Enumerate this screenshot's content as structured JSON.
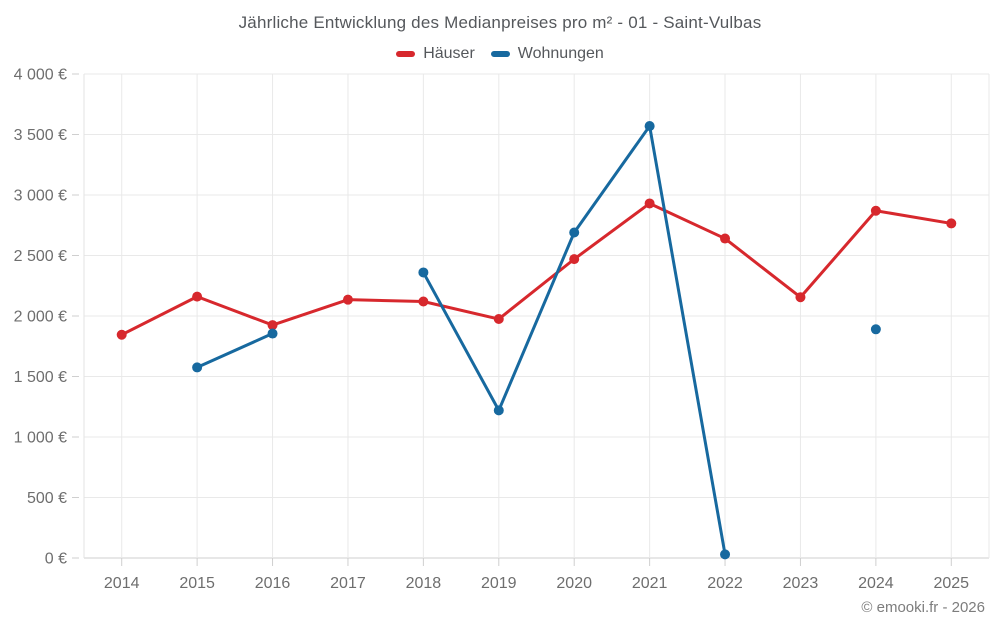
{
  "title": "Jährliche Entwicklung des Medianpreises pro m² - 01 - Saint-Vulbas",
  "legend": [
    {
      "label": "Häuser",
      "color": "#d7282d"
    },
    {
      "label": "Wohnungen",
      "color": "#17699f"
    }
  ],
  "copyright": "© emooki.fr - 2026",
  "chart_data": {
    "type": "line",
    "title": "Jährliche Entwicklung des Medianpreises pro m² - 01 - Saint-Vulbas",
    "categories": [
      "2014",
      "2015",
      "2016",
      "2017",
      "2018",
      "2019",
      "2020",
      "2021",
      "2022",
      "2023",
      "2024",
      "2025"
    ],
    "series": [
      {
        "name": "Häuser",
        "color": "#d7282d",
        "values": [
          1845,
          2160,
          1925,
          2135,
          2120,
          1975,
          2470,
          2930,
          2640,
          2155,
          2870,
          2765
        ]
      },
      {
        "name": "Wohnungen",
        "color": "#17699f",
        "values": [
          null,
          1575,
          1855,
          null,
          2360,
          1220,
          2690,
          3570,
          30,
          null,
          1890,
          null
        ]
      }
    ],
    "xlabel": "",
    "ylabel": "",
    "ylim": [
      0,
      4000
    ],
    "ytick_step": 500,
    "ytick_labels": [
      "0 €",
      "500 €",
      "1 000 €",
      "1 500 €",
      "2 000 €",
      "2 500 €",
      "3 000 €",
      "3 500 €",
      "4 000 €"
    ],
    "grid": true,
    "legend_position": "top",
    "currency": "€"
  },
  "colors": {
    "grid_line": "#e9e9e9",
    "axis_line": "#cfcfcf",
    "tick_text": "#6e6e6e",
    "title_text": "#55585c"
  }
}
